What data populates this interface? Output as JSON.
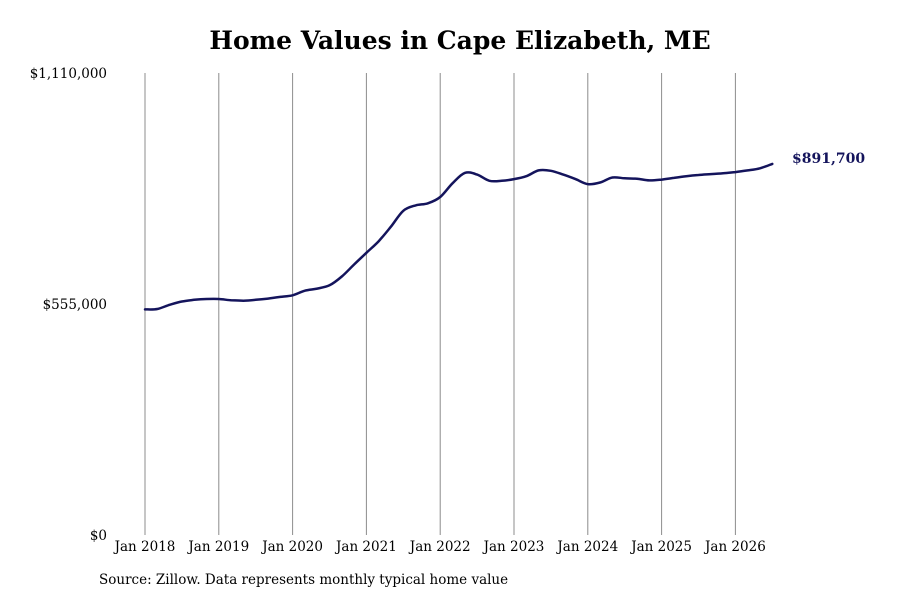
{
  "chart_data": {
    "type": "line",
    "title": "Home Values in Cape Elizabeth, ME",
    "xlabel": "",
    "ylabel": "",
    "ylim": [
      0,
      1110000
    ],
    "y_ticks": [
      0,
      555000,
      1110000
    ],
    "y_tick_labels": [
      "$0",
      "$555,000",
      "$1,110,000"
    ],
    "x_ticks": [
      "2018-01",
      "2019-01",
      "2020-01",
      "2021-01",
      "2022-01",
      "2023-01",
      "2024-01",
      "2025-01",
      "2026-01"
    ],
    "x_tick_labels": [
      "Jan 2018",
      "Jan 2019",
      "Jan 2020",
      "Jan 2021",
      "Jan 2022",
      "Jan 2023",
      "Jan 2024",
      "Jan 2025",
      "Jan 2026"
    ],
    "grid": "vertical",
    "line_color": "#14145c",
    "end_label": "$891,700",
    "series": [
      {
        "points": [
          [
            "2018-01",
            542000
          ],
          [
            "2018-03",
            543000
          ],
          [
            "2018-05",
            553000
          ],
          [
            "2018-07",
            561000
          ],
          [
            "2018-09",
            565000
          ],
          [
            "2018-11",
            567000
          ],
          [
            "2019-01",
            567000
          ],
          [
            "2019-03",
            564000
          ],
          [
            "2019-05",
            563000
          ],
          [
            "2019-07",
            565000
          ],
          [
            "2019-09",
            568000
          ],
          [
            "2019-11",
            572000
          ],
          [
            "2020-01",
            576000
          ],
          [
            "2020-03",
            587000
          ],
          [
            "2020-05",
            592000
          ],
          [
            "2020-07",
            600000
          ],
          [
            "2020-09",
            621000
          ],
          [
            "2020-11",
            650000
          ],
          [
            "2021-01",
            678000
          ],
          [
            "2021-03",
            706000
          ],
          [
            "2021-05",
            741000
          ],
          [
            "2021-07",
            779000
          ],
          [
            "2021-09",
            792000
          ],
          [
            "2021-11",
            797000
          ],
          [
            "2022-01",
            812000
          ],
          [
            "2022-03",
            845000
          ],
          [
            "2022-05",
            870000
          ],
          [
            "2022-07",
            866000
          ],
          [
            "2022-09",
            851000
          ],
          [
            "2022-11",
            851000
          ],
          [
            "2023-01",
            855000
          ],
          [
            "2023-03",
            862000
          ],
          [
            "2023-05",
            876000
          ],
          [
            "2023-07",
            875000
          ],
          [
            "2023-09",
            866000
          ],
          [
            "2023-11",
            855000
          ],
          [
            "2024-01",
            843000
          ],
          [
            "2024-03",
            847000
          ],
          [
            "2024-05",
            859000
          ],
          [
            "2024-07",
            857000
          ],
          [
            "2024-09",
            856000
          ],
          [
            "2024-11",
            852000
          ],
          [
            "2025-01",
            854000
          ],
          [
            "2025-03",
            858000
          ],
          [
            "2025-05",
            862000
          ],
          [
            "2025-07",
            865000
          ],
          [
            "2025-09",
            867000
          ],
          [
            "2025-11",
            869000
          ],
          [
            "2026-01",
            872000
          ],
          [
            "2026-03",
            876000
          ],
          [
            "2026-05",
            881000
          ],
          [
            "2026-07",
            891700
          ]
        ]
      }
    ]
  },
  "source_note": "Source: Zillow. Data represents monthly typical home value"
}
